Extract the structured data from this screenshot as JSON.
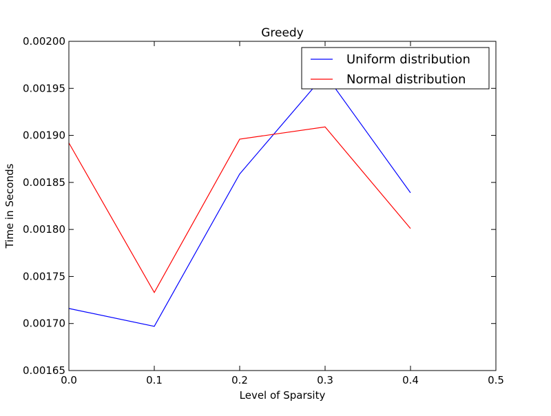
{
  "chart_data": {
    "type": "line",
    "title": "Greedy",
    "xlabel": "Level of Sparsity",
    "ylabel": "Time in Seconds",
    "xlim": [
      0.0,
      0.5
    ],
    "ylim": [
      0.00165,
      0.002
    ],
    "x_ticks": [
      "0.0",
      "0.1",
      "0.2",
      "0.3",
      "0.4",
      "0.5"
    ],
    "y_ticks": [
      "0.00165",
      "0.00170",
      "0.00175",
      "0.00180",
      "0.00185",
      "0.00190",
      "0.00195",
      "0.00200"
    ],
    "grid": false,
    "legend_position": "top-right",
    "x": [
      0.0,
      0.1,
      0.2,
      0.3,
      0.4
    ],
    "series": [
      {
        "name": "Uniform distribution",
        "color": "#0000ff",
        "values": [
          0.001716,
          0.001697,
          0.001859,
          0.001965,
          0.001839
        ]
      },
      {
        "name": "Normal distribution",
        "color": "#ff0000",
        "values": [
          0.001892,
          0.001733,
          0.001896,
          0.001909,
          0.001801
        ]
      }
    ]
  }
}
